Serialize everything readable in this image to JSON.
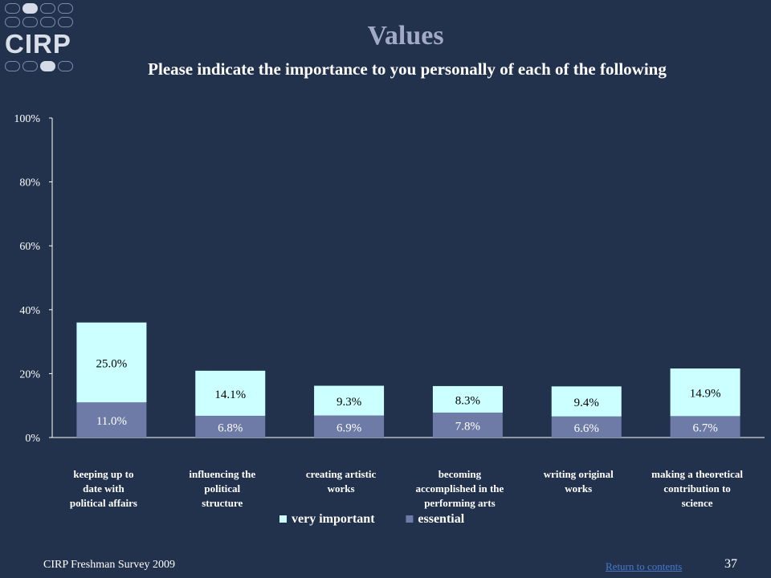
{
  "logo": {
    "text": "CIRP"
  },
  "header": {
    "title": "Values",
    "subtitle": "Please indicate the importance to you personally of each of the following"
  },
  "chart_data": {
    "type": "bar",
    "stacked": true,
    "categories": [
      [
        "keeping up to",
        "date with",
        "political affairs"
      ],
      [
        "influencing the",
        "political",
        "structure"
      ],
      [
        "creating artistic",
        "works"
      ],
      [
        "becoming",
        "accomplished in the",
        "performing arts"
      ],
      [
        "writing original",
        "works"
      ],
      [
        "making a theoretical",
        "contribution to",
        "science"
      ]
    ],
    "series": [
      {
        "name": "essential",
        "values": [
          11.0,
          6.8,
          6.9,
          7.8,
          6.6,
          6.7
        ],
        "labels": [
          "11.0%",
          "6.8%",
          "6.9%",
          "7.8%",
          "6.6%",
          "6.7%"
        ],
        "color": "#6e7ba7"
      },
      {
        "name": "very important",
        "values": [
          25.0,
          14.1,
          9.3,
          8.3,
          9.4,
          14.9
        ],
        "labels": [
          "25.0%",
          "14.1%",
          "9.3%",
          "8.3%",
          "9.4%",
          "14.9%"
        ],
        "color": "#ccffff"
      }
    ],
    "ylim": [
      0,
      100
    ],
    "yticks": [
      "0%",
      "20%",
      "40%",
      "60%",
      "80%",
      "100%"
    ],
    "legend": [
      "very important",
      "essential"
    ],
    "legend_position": "bottom",
    "grid": false
  },
  "footer": {
    "source": "CIRP Freshman Survey 2009",
    "link": "Return to contents",
    "page": "37"
  }
}
